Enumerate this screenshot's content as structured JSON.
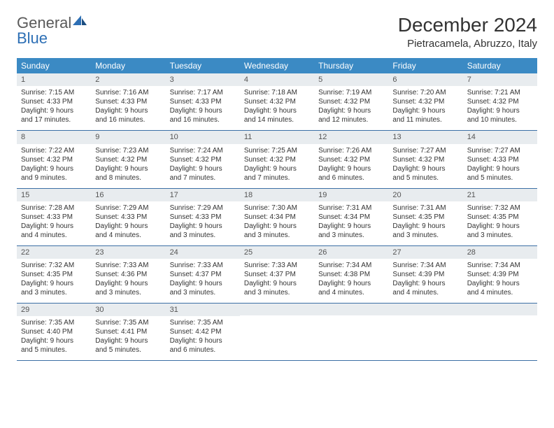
{
  "brand": {
    "word1": "General",
    "word2": "Blue"
  },
  "title": "December 2024",
  "location": "Pietracamela, Abruzzo, Italy",
  "colors": {
    "header_bg": "#3b8ac4",
    "header_text": "#ffffff",
    "daynum_bg": "#e8ecef",
    "row_border": "#3b6fa5",
    "logo_gray": "#5a5a5a",
    "logo_blue": "#2d6fb5"
  },
  "weekdays": [
    "Sunday",
    "Monday",
    "Tuesday",
    "Wednesday",
    "Thursday",
    "Friday",
    "Saturday"
  ],
  "weeks": [
    [
      {
        "n": "1",
        "sr": "7:15 AM",
        "ss": "4:33 PM",
        "dl": "9 hours and 17 minutes."
      },
      {
        "n": "2",
        "sr": "7:16 AM",
        "ss": "4:33 PM",
        "dl": "9 hours and 16 minutes."
      },
      {
        "n": "3",
        "sr": "7:17 AM",
        "ss": "4:33 PM",
        "dl": "9 hours and 16 minutes."
      },
      {
        "n": "4",
        "sr": "7:18 AM",
        "ss": "4:32 PM",
        "dl": "9 hours and 14 minutes."
      },
      {
        "n": "5",
        "sr": "7:19 AM",
        "ss": "4:32 PM",
        "dl": "9 hours and 12 minutes."
      },
      {
        "n": "6",
        "sr": "7:20 AM",
        "ss": "4:32 PM",
        "dl": "9 hours and 11 minutes."
      },
      {
        "n": "7",
        "sr": "7:21 AM",
        "ss": "4:32 PM",
        "dl": "9 hours and 10 minutes."
      }
    ],
    [
      {
        "n": "8",
        "sr": "7:22 AM",
        "ss": "4:32 PM",
        "dl": "9 hours and 9 minutes."
      },
      {
        "n": "9",
        "sr": "7:23 AM",
        "ss": "4:32 PM",
        "dl": "9 hours and 8 minutes."
      },
      {
        "n": "10",
        "sr": "7:24 AM",
        "ss": "4:32 PM",
        "dl": "9 hours and 7 minutes."
      },
      {
        "n": "11",
        "sr": "7:25 AM",
        "ss": "4:32 PM",
        "dl": "9 hours and 7 minutes."
      },
      {
        "n": "12",
        "sr": "7:26 AM",
        "ss": "4:32 PM",
        "dl": "9 hours and 6 minutes."
      },
      {
        "n": "13",
        "sr": "7:27 AM",
        "ss": "4:32 PM",
        "dl": "9 hours and 5 minutes."
      },
      {
        "n": "14",
        "sr": "7:27 AM",
        "ss": "4:33 PM",
        "dl": "9 hours and 5 minutes."
      }
    ],
    [
      {
        "n": "15",
        "sr": "7:28 AM",
        "ss": "4:33 PM",
        "dl": "9 hours and 4 minutes."
      },
      {
        "n": "16",
        "sr": "7:29 AM",
        "ss": "4:33 PM",
        "dl": "9 hours and 4 minutes."
      },
      {
        "n": "17",
        "sr": "7:29 AM",
        "ss": "4:33 PM",
        "dl": "9 hours and 3 minutes."
      },
      {
        "n": "18",
        "sr": "7:30 AM",
        "ss": "4:34 PM",
        "dl": "9 hours and 3 minutes."
      },
      {
        "n": "19",
        "sr": "7:31 AM",
        "ss": "4:34 PM",
        "dl": "9 hours and 3 minutes."
      },
      {
        "n": "20",
        "sr": "7:31 AM",
        "ss": "4:35 PM",
        "dl": "9 hours and 3 minutes."
      },
      {
        "n": "21",
        "sr": "7:32 AM",
        "ss": "4:35 PM",
        "dl": "9 hours and 3 minutes."
      }
    ],
    [
      {
        "n": "22",
        "sr": "7:32 AM",
        "ss": "4:35 PM",
        "dl": "9 hours and 3 minutes."
      },
      {
        "n": "23",
        "sr": "7:33 AM",
        "ss": "4:36 PM",
        "dl": "9 hours and 3 minutes."
      },
      {
        "n": "24",
        "sr": "7:33 AM",
        "ss": "4:37 PM",
        "dl": "9 hours and 3 minutes."
      },
      {
        "n": "25",
        "sr": "7:33 AM",
        "ss": "4:37 PM",
        "dl": "9 hours and 3 minutes."
      },
      {
        "n": "26",
        "sr": "7:34 AM",
        "ss": "4:38 PM",
        "dl": "9 hours and 4 minutes."
      },
      {
        "n": "27",
        "sr": "7:34 AM",
        "ss": "4:39 PM",
        "dl": "9 hours and 4 minutes."
      },
      {
        "n": "28",
        "sr": "7:34 AM",
        "ss": "4:39 PM",
        "dl": "9 hours and 4 minutes."
      }
    ],
    [
      {
        "n": "29",
        "sr": "7:35 AM",
        "ss": "4:40 PM",
        "dl": "9 hours and 5 minutes."
      },
      {
        "n": "30",
        "sr": "7:35 AM",
        "ss": "4:41 PM",
        "dl": "9 hours and 5 minutes."
      },
      {
        "n": "31",
        "sr": "7:35 AM",
        "ss": "4:42 PM",
        "dl": "9 hours and 6 minutes."
      },
      null,
      null,
      null,
      null
    ]
  ],
  "labels": {
    "sunrise": "Sunrise:",
    "sunset": "Sunset:",
    "daylight": "Daylight:"
  }
}
